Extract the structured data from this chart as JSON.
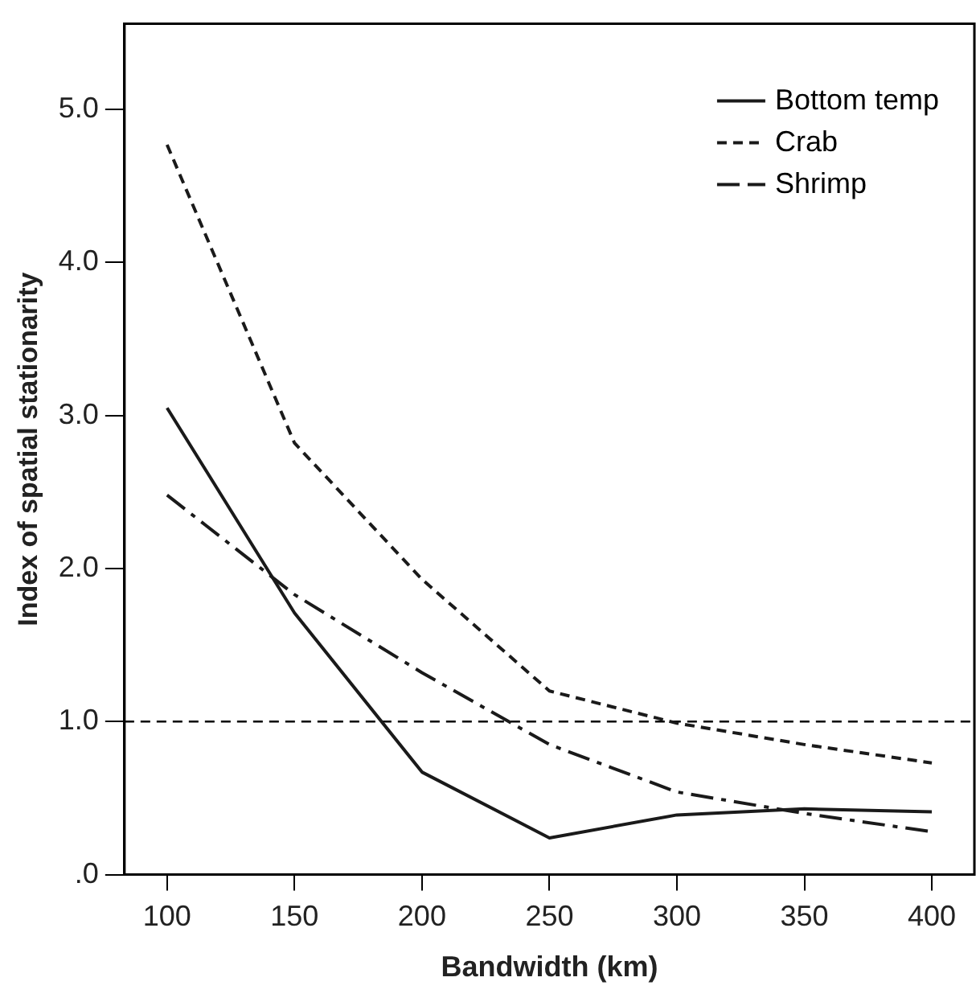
{
  "chart_data": {
    "type": "line",
    "xlabel": "Bandwidth (km)",
    "ylabel": "Index of spatial stationarity",
    "x": [
      100,
      150,
      200,
      250,
      300,
      350,
      400
    ],
    "xlim": [
      83.3,
      416.7
    ],
    "xticks": [
      100,
      150,
      200,
      250,
      300,
      350,
      400
    ],
    "ylim": [
      0,
      5.56
    ],
    "yticks": [
      {
        "value": 0,
        "label": ".0"
      },
      {
        "value": 1,
        "label": "1.0"
      },
      {
        "value": 2,
        "label": "2.0"
      },
      {
        "value": 3,
        "label": "3.0"
      },
      {
        "value": 4,
        "label": "4.0"
      },
      {
        "value": 5,
        "label": "5.0"
      }
    ],
    "grid": false,
    "legend": "top right",
    "marker": "none",
    "ref_lines": [
      {
        "axis": "y",
        "value": 1,
        "color": "#000000",
        "line_style": "dashed"
      }
    ],
    "series": [
      {
        "name": "Bottom temp",
        "color": "#1a1a1a",
        "line_style": "solid",
        "values": [
          3.05,
          1.71,
          0.67,
          0.24,
          0.39,
          0.43,
          0.41
        ]
      },
      {
        "name": "Crab",
        "color": "#1a1a1a",
        "line_style": "dashed",
        "values": [
          4.77,
          2.82,
          1.93,
          1.2,
          0.99,
          0.85,
          0.73
        ]
      },
      {
        "name": "Shrimp",
        "color": "#1a1a1a",
        "line_style": "dashdot",
        "values": [
          2.48,
          1.83,
          1.32,
          0.85,
          0.54,
          0.4,
          0.28
        ]
      }
    ]
  }
}
